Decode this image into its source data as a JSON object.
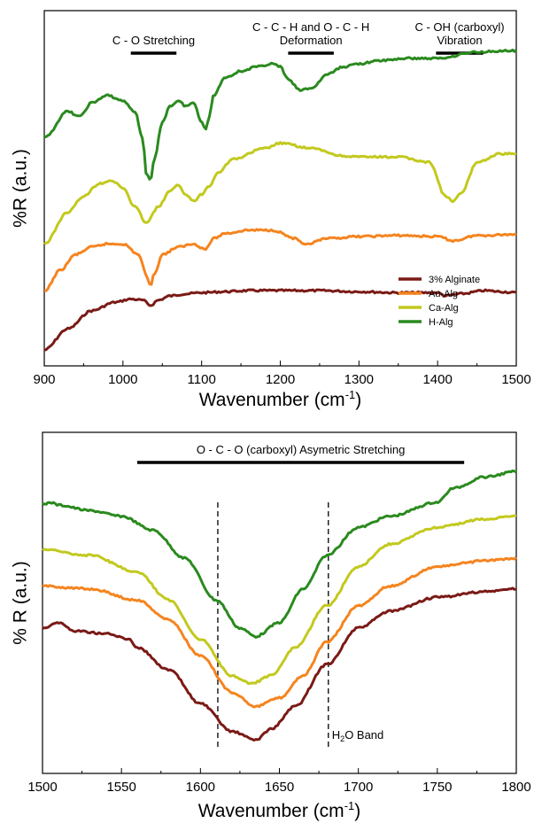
{
  "colors": {
    "3% Alginate": "#7a1a16",
    "Au-Alg": "#f5841f",
    "Ca-Alg": "#c2c91e",
    "H-Alg": "#2a8a1e"
  },
  "chart_data": [
    {
      "type": "line",
      "xlabel": "Wavenumber (cm",
      "xlabel_sup": "-1",
      "xlabel_close": ")",
      "ylabel": "%R (a.u.)",
      "xlim": [
        900,
        1500
      ],
      "xticks": [
        "900",
        "1000",
        "1100",
        "1200",
        "1300",
        "1400",
        "1500"
      ],
      "y_ticks_shown": false,
      "legend_position": "bottom-right",
      "annotations": [
        {
          "lines": [
            "C - O Stretching"
          ],
          "x_range": [
            1010,
            1068
          ]
        },
        {
          "lines": [
            "C - C - H and O - C - H",
            "Deformation"
          ],
          "x_range": [
            1210,
            1268
          ]
        },
        {
          "lines": [
            "C - OH (carboxyl)",
            "Vibration"
          ],
          "x_range": [
            1398,
            1458
          ]
        }
      ],
      "series": [
        {
          "name": "3% Alginate",
          "color": "#7a1a16",
          "x": [
            900,
            930,
            960,
            990,
            1010,
            1025,
            1035,
            1045,
            1060,
            1080,
            1100,
            1130,
            1160,
            1200,
            1250,
            1300,
            1350,
            1400,
            1410,
            1430,
            1460,
            1480,
            1500
          ],
          "y": [
            0.15,
            0.35,
            0.52,
            0.6,
            0.63,
            0.62,
            0.57,
            0.62,
            0.66,
            0.68,
            0.69,
            0.7,
            0.71,
            0.71,
            0.71,
            0.7,
            0.69,
            0.69,
            0.66,
            0.68,
            0.71,
            0.7,
            0.69
          ]
        },
        {
          "name": "Au-Alg",
          "color": "#f5841f",
          "x": [
            900,
            920,
            940,
            960,
            980,
            1000,
            1020,
            1030,
            1035,
            1040,
            1050,
            1070,
            1090,
            1105,
            1115,
            1130,
            1160,
            1190,
            1220,
            1230,
            1260,
            1300,
            1350,
            1400,
            1420,
            1450,
            1500
          ],
          "y": [
            0.7,
            0.9,
            1.05,
            1.12,
            1.15,
            1.15,
            1.05,
            0.85,
            0.76,
            0.87,
            1.05,
            1.12,
            1.15,
            1.1,
            1.2,
            1.25,
            1.28,
            1.28,
            1.2,
            1.14,
            1.2,
            1.22,
            1.23,
            1.22,
            1.18,
            1.23,
            1.24
          ]
        },
        {
          "name": "Ca-Alg",
          "color": "#c2c91e",
          "x": [
            900,
            930,
            950,
            970,
            985,
            1000,
            1015,
            1030,
            1045,
            1060,
            1070,
            1080,
            1090,
            1100,
            1110,
            1120,
            1140,
            1180,
            1200,
            1240,
            1280,
            1300,
            1350,
            1390,
            1410,
            1420,
            1430,
            1450,
            1480,
            1500
          ],
          "y": [
            1.15,
            1.45,
            1.6,
            1.72,
            1.75,
            1.68,
            1.5,
            1.35,
            1.5,
            1.65,
            1.7,
            1.62,
            1.55,
            1.62,
            1.7,
            1.82,
            1.95,
            2.05,
            2.1,
            2.05,
            1.98,
            1.97,
            1.97,
            1.92,
            1.6,
            1.55,
            1.63,
            1.92,
            2.0,
            2.0
          ]
        },
        {
          "name": "H-Alg",
          "color": "#2a8a1e",
          "x": [
            900,
            930,
            945,
            960,
            980,
            1000,
            1015,
            1025,
            1030,
            1035,
            1040,
            1050,
            1060,
            1070,
            1080,
            1090,
            1100,
            1105,
            1110,
            1115,
            1130,
            1150,
            1170,
            1190,
            1200,
            1210,
            1225,
            1240,
            1260,
            1280,
            1300,
            1330,
            1360,
            1400,
            1450,
            1480,
            1500
          ],
          "y": [
            2.15,
            2.4,
            2.35,
            2.48,
            2.55,
            2.5,
            2.4,
            2.15,
            1.8,
            1.75,
            1.95,
            2.3,
            2.45,
            2.5,
            2.45,
            2.48,
            2.3,
            2.24,
            2.35,
            2.55,
            2.72,
            2.78,
            2.82,
            2.85,
            2.82,
            2.7,
            2.6,
            2.62,
            2.75,
            2.82,
            2.85,
            2.88,
            2.9,
            2.9,
            2.96,
            2.97,
            2.97
          ]
        }
      ],
      "legend": [
        "3% Alginate",
        "Au-Alg",
        "Ca-Alg",
        "H-Alg"
      ]
    },
    {
      "type": "line",
      "xlabel": "Wavenumber (cm",
      "xlabel_sup": "-1",
      "xlabel_close": ")",
      "ylabel": "% R (a.u.)",
      "xlim": [
        1500,
        1800
      ],
      "xticks": [
        "1500",
        "1550",
        "1600",
        "1650",
        "1700",
        "1750",
        "1800"
      ],
      "y_ticks_shown": false,
      "annotations": [
        {
          "lines": [
            "O - C - O (carboxyl) Asymetric Stretching"
          ],
          "x_range": [
            1560,
            1767
          ]
        }
      ],
      "reference_lines": [
        {
          "x": 1611
        },
        {
          "x": 1681,
          "label_main": "H",
          "label_sub": "2",
          "label_rest": "O Band"
        }
      ],
      "series": [
        {
          "name": "3% Alginate",
          "color": "#7a1a16",
          "x": [
            1500,
            1510,
            1520,
            1540,
            1555,
            1560,
            1580,
            1600,
            1620,
            1635,
            1645,
            1660,
            1680,
            1700,
            1720,
            1750,
            1780,
            1800
          ],
          "y": [
            0.4,
            0.42,
            0.39,
            0.38,
            0.36,
            0.33,
            0.25,
            0.13,
            0.03,
            0.0,
            0.04,
            0.12,
            0.27,
            0.4,
            0.46,
            0.51,
            0.53,
            0.54
          ]
        },
        {
          "name": "Au-Alg",
          "color": "#f5841f",
          "x": [
            1500,
            1530,
            1560,
            1580,
            1600,
            1620,
            1635,
            1650,
            1665,
            1680,
            1700,
            1720,
            1750,
            1780,
            1800
          ],
          "y": [
            0.55,
            0.54,
            0.5,
            0.43,
            0.3,
            0.17,
            0.12,
            0.15,
            0.23,
            0.35,
            0.48,
            0.55,
            0.62,
            0.64,
            0.65
          ]
        },
        {
          "name": "Ca-Alg",
          "color": "#c2c91e",
          "x": [
            1500,
            1530,
            1560,
            1580,
            1600,
            1620,
            1632,
            1645,
            1660,
            1680,
            1700,
            1720,
            1750,
            1780,
            1800
          ],
          "y": [
            0.68,
            0.66,
            0.6,
            0.5,
            0.36,
            0.23,
            0.2,
            0.23,
            0.33,
            0.48,
            0.62,
            0.7,
            0.76,
            0.79,
            0.8
          ]
        },
        {
          "name": "H-Alg",
          "color": "#2a8a1e",
          "x": [
            1500,
            1505,
            1510,
            1530,
            1550,
            1570,
            1590,
            1610,
            1625,
            1635,
            1650,
            1665,
            1680,
            1700,
            1720,
            1750,
            1760,
            1780,
            1800
          ],
          "y": [
            0.84,
            0.85,
            0.84,
            0.82,
            0.8,
            0.75,
            0.65,
            0.5,
            0.4,
            0.37,
            0.42,
            0.54,
            0.66,
            0.76,
            0.8,
            0.85,
            0.9,
            0.94,
            0.96
          ]
        }
      ]
    }
  ]
}
